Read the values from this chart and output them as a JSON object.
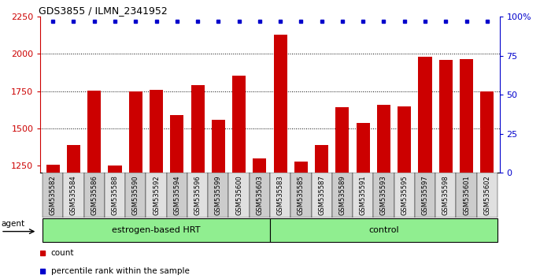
{
  "title": "GDS3855 / ILMN_2341952",
  "samples": [
    "GSM535582",
    "GSM535584",
    "GSM535586",
    "GSM535588",
    "GSM535590",
    "GSM535592",
    "GSM535594",
    "GSM535596",
    "GSM535599",
    "GSM535600",
    "GSM535603",
    "GSM535583",
    "GSM535585",
    "GSM535587",
    "GSM535589",
    "GSM535591",
    "GSM535593",
    "GSM535595",
    "GSM535597",
    "GSM535598",
    "GSM535601",
    "GSM535602"
  ],
  "counts": [
    1255,
    1390,
    1755,
    1250,
    1750,
    1760,
    1590,
    1790,
    1560,
    1855,
    1300,
    2130,
    1275,
    1390,
    1640,
    1535,
    1660,
    1650,
    1980,
    1960,
    1965,
    1750
  ],
  "percentile_values": [
    97,
    97,
    97,
    97,
    97,
    97,
    97,
    97,
    97,
    97,
    97,
    97,
    97,
    97,
    97,
    97,
    97,
    97,
    97,
    97,
    97,
    97
  ],
  "group_labels": [
    "estrogen-based HRT",
    "control"
  ],
  "group_sizes": [
    11,
    11
  ],
  "group_color": "#90EE90",
  "bar_color": "#CC0000",
  "dot_color": "#0000CC",
  "ymin": 1200,
  "ymax": 2250,
  "yticks_left": [
    1250,
    1500,
    1750,
    2000,
    2250
  ],
  "yticks_right": [
    0,
    25,
    50,
    75,
    100
  ],
  "grid_lines": [
    1500,
    1750,
    2000
  ],
  "tick_fontsize": 6.0,
  "title_fontsize": 9,
  "legend_labels": [
    "count",
    "percentile rank within the sample"
  ],
  "legend_colors": [
    "#CC0000",
    "#0000CC"
  ]
}
